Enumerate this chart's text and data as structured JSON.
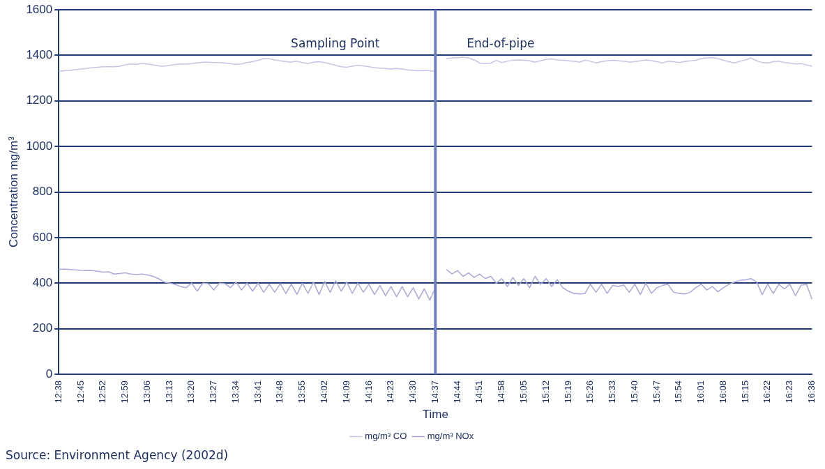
{
  "chart_data": {
    "type": "line",
    "xlabel": "Time",
    "ylabel": "Concentration mg/m³",
    "categories": [
      "12:38",
      null,
      null,
      null,
      "12:45",
      null,
      null,
      null,
      "12:52",
      null,
      null,
      null,
      "12:59",
      null,
      null,
      null,
      "13:06",
      null,
      null,
      null,
      "13:13",
      null,
      null,
      null,
      "13:20",
      null,
      null,
      null,
      "13:27",
      null,
      null,
      null,
      "13:34",
      null,
      null,
      null,
      "13:41",
      null,
      null,
      null,
      "13:48",
      null,
      null,
      null,
      "13:55",
      null,
      null,
      null,
      "14:02",
      null,
      null,
      null,
      "14:09",
      null,
      null,
      null,
      "14:16",
      null,
      null,
      null,
      "14:23",
      null,
      null,
      null,
      "14:30",
      null,
      null,
      null,
      "14:37",
      null,
      null,
      null,
      "14:44",
      null,
      null,
      null,
      "14:51",
      null,
      null,
      null,
      "14:58",
      null,
      null,
      null,
      "15:05",
      null,
      null,
      null,
      "15:12",
      null,
      null,
      null,
      "15:19",
      null,
      null,
      null,
      "15:26",
      null,
      null,
      null,
      "15:33",
      null,
      null,
      null,
      "15:40",
      null,
      null,
      null,
      "15:47",
      null,
      null,
      null,
      "15:54",
      null,
      null,
      null,
      "16:01",
      null,
      null,
      null,
      "16:08",
      null,
      null,
      null,
      "15:15",
      null,
      null,
      null,
      "16:22",
      null,
      null,
      null,
      "16:23",
      null,
      null,
      null,
      "16:36"
    ],
    "series": [
      {
        "name": "mg/m³ CO",
        "color": "#c4c4e6",
        "values": [
          1330,
          1332,
          1334,
          1337,
          1340,
          1342,
          1345,
          1348,
          1350,
          1350,
          1350,
          1352,
          1358,
          1362,
          1360,
          1365,
          1362,
          1358,
          1354,
          1352,
          1355,
          1360,
          1362,
          1362,
          1364,
          1367,
          1370,
          1370,
          1368,
          1368,
          1366,
          1364,
          1360,
          1362,
          1368,
          1372,
          1378,
          1385,
          1385,
          1380,
          1376,
          1372,
          1370,
          1374,
          1368,
          1364,
          1370,
          1372,
          1368,
          1362,
          1356,
          1350,
          1348,
          1352,
          1356,
          1354,
          1350,
          1346,
          1344,
          1342,
          1340,
          1342,
          1340,
          1336,
          1334,
          1332,
          1334,
          1332,
          1330,
          null,
          1385,
          1388,
          1390,
          1392,
          1388,
          1380,
          1366,
          1364,
          1366,
          1378,
          1368,
          1374,
          1378,
          1380,
          1378,
          1376,
          1370,
          1376,
          1382,
          1384,
          1380,
          1378,
          1376,
          1374,
          1370,
          1378,
          1374,
          1366,
          1372,
          1376,
          1378,
          1376,
          1374,
          1370,
          1372,
          1376,
          1380,
          1376,
          1372,
          1366,
          1374,
          1372,
          1368,
          1372,
          1376,
          1378,
          1386,
          1388,
          1390,
          1386,
          1378,
          1372,
          1366,
          1374,
          1380,
          1388,
          1376,
          1368,
          1366,
          1372,
          1374,
          1368,
          1366,
          1362,
          1364,
          1358,
          1352
        ]
      },
      {
        "name": "mg/m³ NOx",
        "color": "#a9a9dc",
        "values": [
          460,
          462,
          460,
          458,
          456,
          455,
          455,
          452,
          448,
          450,
          440,
          442,
          445,
          440,
          438,
          440,
          436,
          430,
          420,
          405,
          400,
          395,
          385,
          380,
          400,
          365,
          400,
          398,
          370,
          400,
          398,
          380,
          405,
          370,
          400,
          365,
          400,
          360,
          395,
          360,
          398,
          355,
          395,
          350,
          400,
          355,
          405,
          350,
          408,
          360,
          410,
          365,
          405,
          355,
          400,
          360,
          395,
          350,
          390,
          345,
          385,
          340,
          385,
          340,
          380,
          330,
          375,
          325,
          380,
          null,
          460,
          440,
          455,
          430,
          445,
          425,
          440,
          420,
          430,
          400,
          420,
          385,
          425,
          390,
          420,
          380,
          430,
          395,
          420,
          385,
          415,
          380,
          365,
          355,
          352,
          355,
          395,
          360,
          395,
          355,
          390,
          385,
          392,
          360,
          395,
          350,
          400,
          355,
          380,
          390,
          395,
          360,
          355,
          352,
          360,
          380,
          395,
          370,
          385,
          362,
          380,
          395,
          405,
          412,
          415,
          420,
          405,
          350,
          395,
          355,
          395,
          375,
          395,
          345,
          390,
          395,
          330
        ]
      }
    ],
    "ylim": [
      0,
      1600
    ],
    "yticks": [
      0,
      200,
      400,
      600,
      800,
      1000,
      1200,
      1400,
      1600
    ],
    "grid": "y",
    "legend": "bottom",
    "marker": "none",
    "line_style": "solid",
    "ref_lines": [
      {
        "axis": "x",
        "value": "14:37",
        "color": "#6f80c2"
      }
    ],
    "annotations": [
      "Sampling Point",
      "End-of-pipe",
      "Source: Environment Agency (2002d)"
    ]
  }
}
